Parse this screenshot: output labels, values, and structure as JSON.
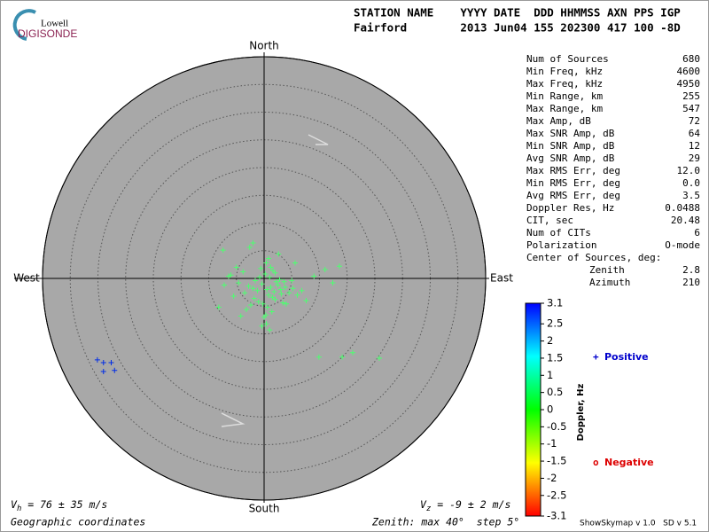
{
  "logo": {
    "top": "Lowell",
    "bottom": "DIGISONDE"
  },
  "header": {
    "line1": "STATION NAME    YYYY DATE  DDD HHMMSS AXN PPS IGP",
    "line2": "Fairford        2013 Jun04 155 202300 417 100 -8D"
  },
  "stats": [
    [
      "Num of Sources",
      "680"
    ],
    [
      "Min Freq, kHz",
      "4600"
    ],
    [
      "Max Freq, kHz",
      "4950"
    ],
    [
      "Min Range, km",
      "255"
    ],
    [
      "Max Range, km",
      "547"
    ],
    [
      "Max Amp, dB",
      "72"
    ],
    [
      "Max SNR Amp, dB",
      "64"
    ],
    [
      "Min SNR Amp, dB",
      "12"
    ],
    [
      "Avg SNR Amp, dB",
      "29"
    ],
    [
      "Max RMS Err, deg",
      "12.0"
    ],
    [
      "Min RMS Err, deg",
      "0.0"
    ],
    [
      "Avg RMS Err, deg",
      "3.5"
    ],
    [
      "Doppler Res, Hz",
      "0.0488"
    ],
    [
      "CIT, sec",
      "20.48"
    ],
    [
      "Num of CITs",
      "6"
    ],
    [
      "Polarization",
      "O-mode"
    ],
    [
      "Center of Sources, deg:"
    ],
    [
      "Zenith",
      "2.8"
    ],
    [
      "Azimuth",
      "210"
    ]
  ],
  "chart_data": {
    "type": "polar-scatter",
    "directions": {
      "north": "North",
      "south": "South",
      "east": "East",
      "west": "West"
    },
    "rlim": [
      0,
      40
    ],
    "rticks": [
      5,
      10,
      15,
      20,
      25,
      30,
      35,
      40
    ],
    "series": [
      {
        "x": [
          0.5,
          1.2,
          1.8,
          2.5,
          3.1,
          -0.4,
          -1.2,
          -2.0,
          0.8,
          1.5,
          2.2,
          3.0,
          3.8,
          4.5,
          -0.8,
          -1.6,
          -2.8,
          -3.5,
          -4.6,
          -5.5,
          -6.4,
          -7.2,
          0.2,
          1.0,
          2.0,
          2.8,
          3.6,
          5.2,
          6.0,
          6.8,
          7.6,
          -0.2,
          0.6,
          1.4,
          -1.0,
          -2.4,
          -3.2,
          4.0,
          5.0,
          1.2,
          0.4,
          0.8,
          1.6,
          -0.6,
          2.6,
          -3.8,
          -5.0,
          -6.0,
          0.0,
          0.4,
          1.0,
          9.0,
          11.0,
          12.4,
          13.6,
          -2.6,
          -7.4,
          -2.0,
          0.3,
          -0.4,
          9.9,
          14.1,
          16.0,
          20.8,
          2.0,
          3.4,
          -1.8,
          -4.2,
          5.6,
          -8.2,
          -30.1,
          -29.0,
          -27.6,
          -29.0,
          -27.0
        ],
        "y": [
          -2.0,
          -1.6,
          -2.4,
          -1.2,
          -2.8,
          -1.0,
          -2.2,
          -1.8,
          -3.0,
          -3.4,
          -0.6,
          -2.0,
          -1.6,
          -2.6,
          0.2,
          -0.4,
          -1.4,
          -2.6,
          -0.8,
          -3.2,
          0.4,
          -1.2,
          0.8,
          0.2,
          1.0,
          -0.2,
          -0.6,
          -1.8,
          -3.0,
          -2.2,
          -4.0,
          -4.6,
          -5.2,
          -6.0,
          -4.2,
          -4.8,
          -5.6,
          -4.6,
          -0.4,
          2.0,
          2.8,
          3.6,
          1.4,
          1.8,
          4.4,
          1.2,
          2.0,
          0.6,
          -7.0,
          -8.2,
          -9.3,
          0.4,
          1.6,
          -0.8,
          2.2,
          5.6,
          5.1,
          6.4,
          -6.6,
          -8.6,
          -14.2,
          -14.2,
          -13.4,
          -14.4,
          -3.8,
          -4.4,
          -3.6,
          -6.8,
          2.8,
          -5.2,
          -14.7,
          -15.2,
          -15.2,
          -16.8,
          -16.6
        ],
        "doppler": [
          0.3,
          0.3,
          0.3,
          0.3,
          0.3,
          0.3,
          0.3,
          0.3,
          0.3,
          0.3,
          0.3,
          0.3,
          0.3,
          0.3,
          0.3,
          0.3,
          0.3,
          0.3,
          0.3,
          0.3,
          0.3,
          0.3,
          0.3,
          0.3,
          0.3,
          0.3,
          0.3,
          0.3,
          0.3,
          0.3,
          0.3,
          0.3,
          0.3,
          0.3,
          0.3,
          0.3,
          0.3,
          0.3,
          0.3,
          0.3,
          0.3,
          0.3,
          0.3,
          0.3,
          0.3,
          0.3,
          0.3,
          0.3,
          0.3,
          0.3,
          0.3,
          0.3,
          0.3,
          0.3,
          0.3,
          0.3,
          0.3,
          0.3,
          0.3,
          0.3,
          0.3,
          0.3,
          0.3,
          0.3,
          0.3,
          0.3,
          0.3,
          0.3,
          0.3,
          0.3,
          2.8,
          2.8,
          2.8,
          2.8,
          2.8
        ]
      }
    ]
  },
  "colorbar": {
    "label": "Doppler, Hz",
    "lim": [
      -3.1,
      3.1
    ],
    "ticks": [
      3.1,
      2.5,
      2,
      1.5,
      1,
      0.5,
      0,
      -0.5,
      -1,
      -1.5,
      -2,
      -2.5,
      -3.1
    ]
  },
  "legend": [
    {
      "symbol": "+",
      "label": "Positive",
      "color": "#0000cc"
    },
    {
      "symbol": "o",
      "label": "Negative",
      "color": "#dd0000"
    }
  ],
  "footer": {
    "vh": {
      "symbol": "V",
      "sub": "h",
      "text": " = 76 ± 35 m/s"
    },
    "vz": {
      "symbol": "V",
      "sub": "z",
      "text": " = -9 ± 2 m/s"
    },
    "coords": "Geographic coordinates",
    "zenith": "Zenith: max 40°  step 5°",
    "version": "ShowSkymap v 1.0   SD v 5.1"
  }
}
